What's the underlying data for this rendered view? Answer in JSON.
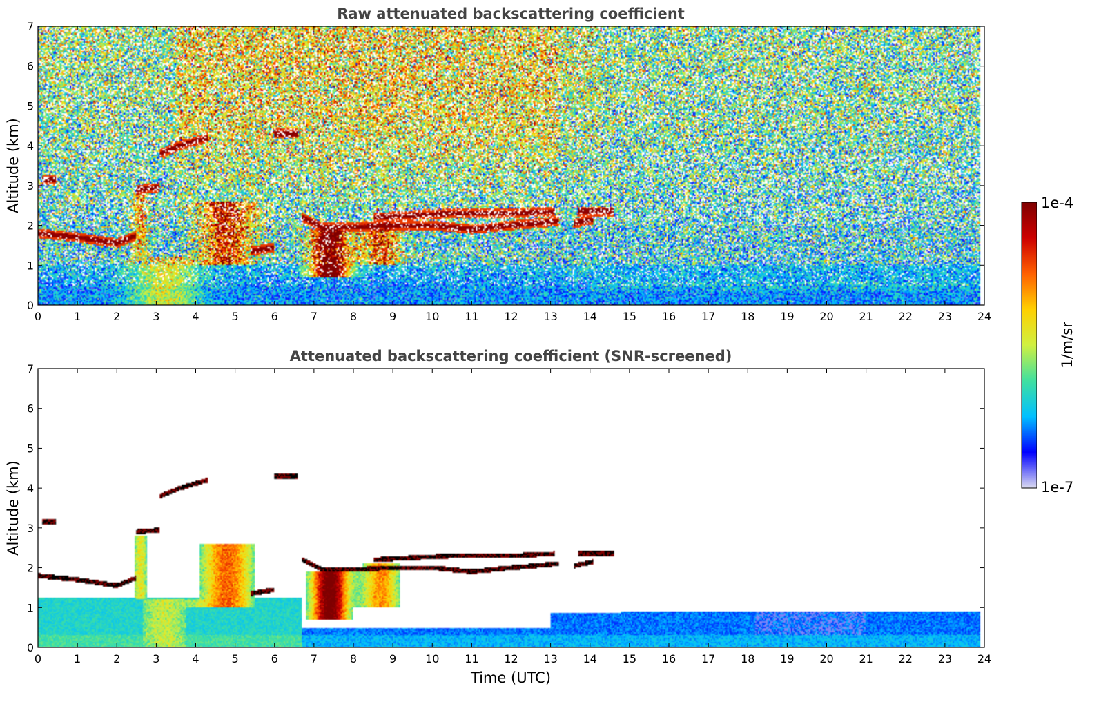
{
  "chart_data": [
    {
      "type": "heatmap",
      "title": "Raw attenuated backscattering coefficient",
      "xlabel": "",
      "ylabel": "Altitude (km)",
      "xlim": [
        0,
        24
      ],
      "ylim": [
        0,
        7
      ],
      "xticks": [
        0,
        1,
        2,
        3,
        4,
        5,
        6,
        7,
        8,
        9,
        10,
        11,
        12,
        13,
        14,
        15,
        16,
        17,
        18,
        19,
        20,
        21,
        22,
        23,
        24
      ],
      "yticks": [
        0,
        1,
        2,
        3,
        4,
        5,
        6,
        7
      ],
      "screened": false,
      "features": [
        {
          "kind": "layer",
          "points": [
            [
              0,
              1.8
            ],
            [
              1,
              1.7
            ],
            [
              2,
              1.55
            ],
            [
              2.5,
              1.75
            ]
          ]
        },
        {
          "kind": "layer",
          "points": [
            [
              0.1,
              3.15
            ],
            [
              0.45,
              3.15
            ]
          ]
        },
        {
          "kind": "layer",
          "points": [
            [
              2.5,
              2.9
            ],
            [
              3.1,
              2.95
            ]
          ]
        },
        {
          "kind": "layer",
          "points": [
            [
              3.1,
              3.8
            ],
            [
              3.6,
              4.0
            ],
            [
              4.3,
              4.2
            ]
          ]
        },
        {
          "kind": "layer",
          "points": [
            [
              5.4,
              1.35
            ],
            [
              6.0,
              1.45
            ]
          ]
        },
        {
          "kind": "layer",
          "points": [
            [
              6.0,
              4.3
            ],
            [
              6.6,
              4.3
            ]
          ]
        },
        {
          "kind": "layer",
          "points": [
            [
              6.7,
              2.2
            ],
            [
              7.2,
              1.95
            ],
            [
              8.0,
              1.95
            ],
            [
              9.0,
              2.0
            ],
            [
              10.0,
              2.0
            ],
            [
              11.0,
              1.9
            ],
            [
              12.0,
              2.0
            ],
            [
              13.2,
              2.1
            ]
          ]
        },
        {
          "kind": "layer",
          "points": [
            [
              8.5,
              2.2
            ],
            [
              10.5,
              2.3
            ],
            [
              12.0,
              2.3
            ],
            [
              13.1,
              2.35
            ]
          ]
        },
        {
          "kind": "layer",
          "points": [
            [
              13.6,
              2.05
            ],
            [
              14.1,
              2.15
            ]
          ]
        },
        {
          "kind": "layer",
          "points": [
            [
              13.7,
              2.35
            ],
            [
              14.6,
              2.35
            ]
          ]
        }
      ]
    },
    {
      "type": "heatmap",
      "title": "Attenuated backscattering coefficient (SNR-screened)",
      "xlabel": "Time (UTC)",
      "ylabel": "Altitude (km)",
      "xlim": [
        0,
        24
      ],
      "ylim": [
        0,
        7
      ],
      "xticks": [
        0,
        1,
        2,
        3,
        4,
        5,
        6,
        7,
        8,
        9,
        10,
        11,
        12,
        13,
        14,
        15,
        16,
        17,
        18,
        19,
        20,
        21,
        22,
        23,
        24
      ],
      "yticks": [
        0,
        1,
        2,
        3,
        4,
        5,
        6,
        7
      ],
      "screened": true
    }
  ],
  "colorbar": {
    "label": "1/m/sr",
    "max_label": "1e-4",
    "min_label": "1e-7",
    "colormap": [
      "#dcdcf0",
      "#0000ff",
      "#00c0ff",
      "#40e0a0",
      "#d0f040",
      "#ffd000",
      "#ff6000",
      "#cc0000",
      "#7f0000"
    ]
  }
}
